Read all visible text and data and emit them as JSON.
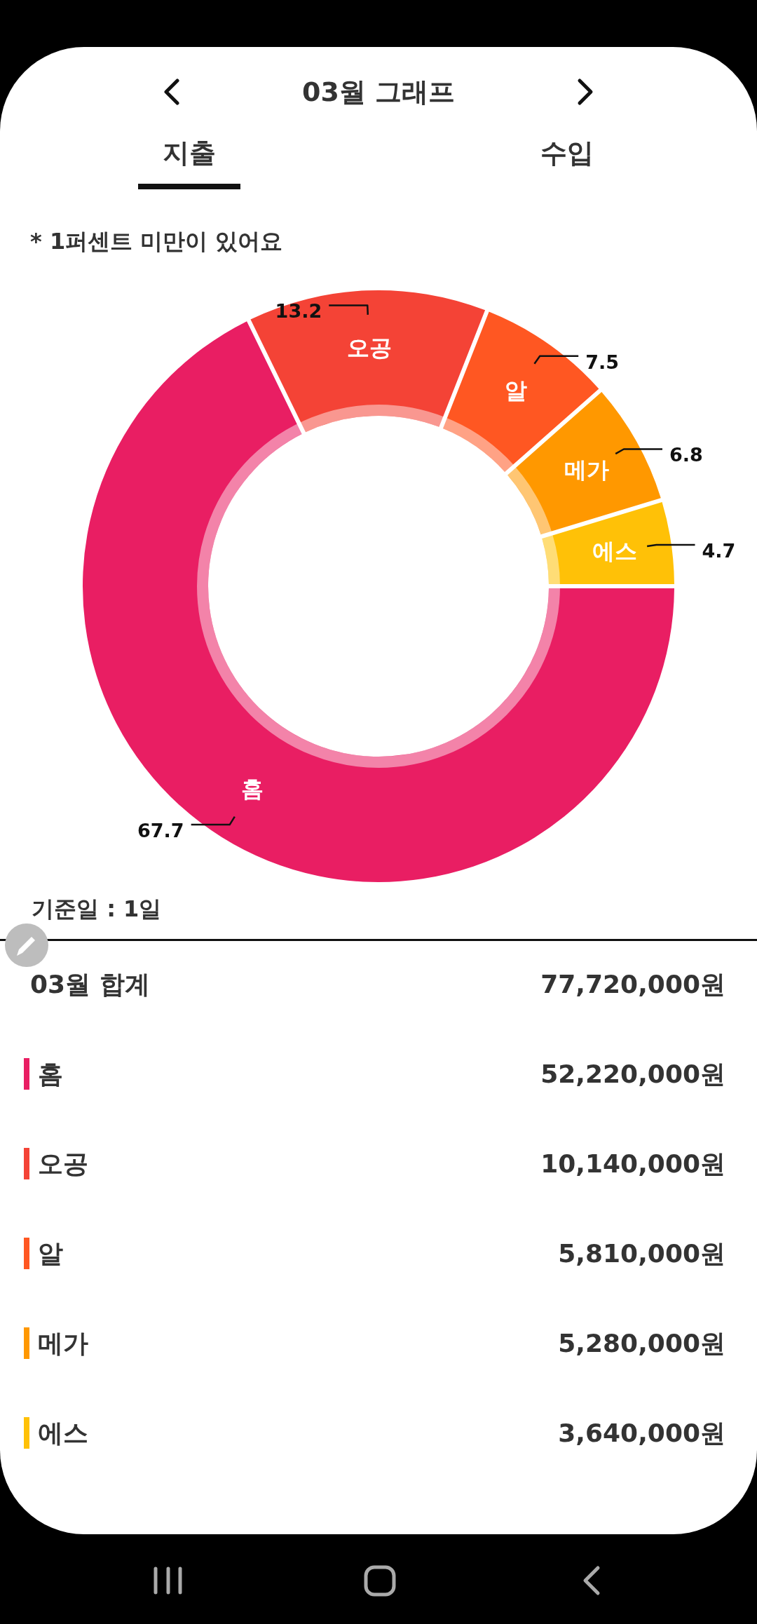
{
  "chart_data": {
    "type": "donut",
    "title": "03월 그래프",
    "subtitle": "* 1퍼센트 미만이 있어요",
    "categories": [
      "홈",
      "오공",
      "알",
      "메가",
      "에스"
    ],
    "values": [
      67.7,
      13.2,
      7.5,
      6.8,
      4.7
    ],
    "colors": [
      "#e91e63",
      "#f44336",
      "#ff5722",
      "#ff9800",
      "#ffc107"
    ],
    "data_labels": true,
    "legend": "bottom",
    "annotations": [
      "지출",
      "수입",
      "기준일 : 1일",
      "03월 합계",
      "77,720,000원",
      "52,220,000원",
      "10,140,000원",
      "5,810,000원",
      "5,280,000원",
      "3,640,000원"
    ]
  }
}
